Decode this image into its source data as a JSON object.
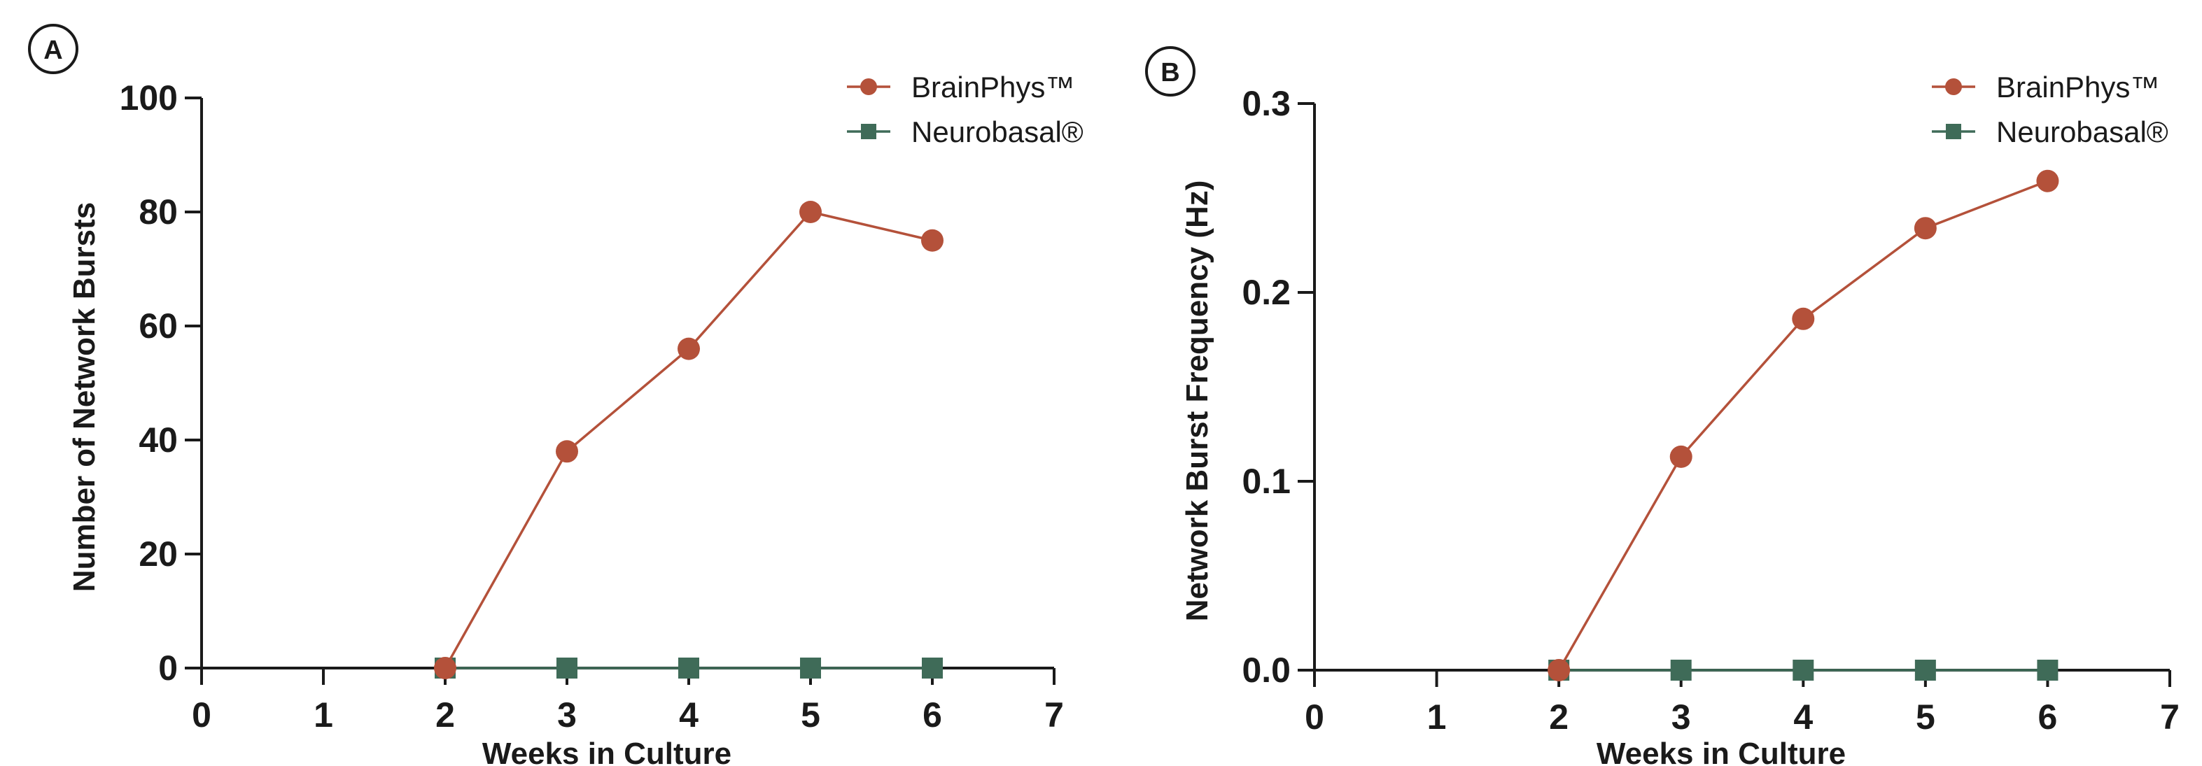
{
  "colors": {
    "brainphys": "#b4513a",
    "neurobasal": "#3f6b58",
    "axis": "#1a1a1a"
  },
  "chart_data": [
    {
      "panel": "A",
      "type": "line",
      "xlabel": "Weeks in Culture",
      "ylabel": "Number of Network Bursts",
      "xlim": [
        0,
        7
      ],
      "ylim": [
        0,
        100
      ],
      "xticks": [
        "0",
        "1",
        "2",
        "3",
        "4",
        "5",
        "6",
        "7"
      ],
      "yticks": [
        "0",
        "20",
        "40",
        "60",
        "80",
        "100"
      ],
      "legend": "top-right",
      "grid": false,
      "series": [
        {
          "name": "BrainPhys™",
          "marker": "circle",
          "x": [
            2,
            3,
            4,
            5,
            6
          ],
          "y": [
            0,
            38,
            56,
            80,
            75
          ]
        },
        {
          "name": "Neurobasal®",
          "marker": "square",
          "x": [
            2,
            3,
            4,
            5,
            6
          ],
          "y": [
            0,
            0,
            0,
            0,
            0
          ]
        }
      ]
    },
    {
      "panel": "B",
      "type": "line",
      "xlabel": "Weeks in Culture",
      "ylabel": "Network Burst Frequency (Hz)",
      "xlim": [
        0,
        7
      ],
      "ylim": [
        0,
        0.3
      ],
      "xticks": [
        "0",
        "1",
        "2",
        "3",
        "4",
        "5",
        "6",
        "7"
      ],
      "yticks": [
        "0.0",
        "0.1",
        "0.2",
        "0.3"
      ],
      "legend": "top-right",
      "grid": false,
      "series": [
        {
          "name": "BrainPhys™",
          "marker": "circle",
          "x": [
            2,
            3,
            4,
            5,
            6
          ],
          "y": [
            0,
            0.113,
            0.186,
            0.234,
            0.259
          ]
        },
        {
          "name": "Neurobasal®",
          "marker": "square",
          "x": [
            2,
            3,
            4,
            5,
            6
          ],
          "y": [
            0,
            0,
            0,
            0,
            0
          ]
        }
      ]
    }
  ]
}
